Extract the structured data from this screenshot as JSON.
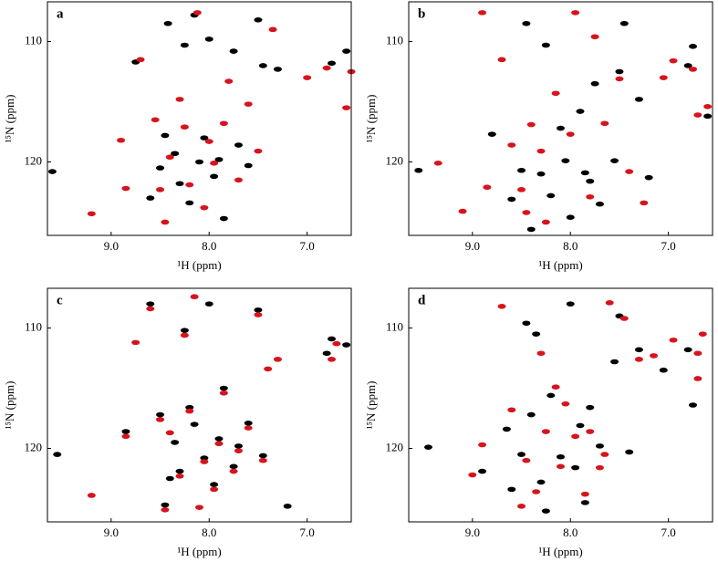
{
  "chart_data": [
    {
      "type": "scatter",
      "label": "a",
      "xlabel": "¹H (ppm)",
      "ylabel": "¹⁵N (ppm)",
      "xlim": [
        9.65,
        6.55
      ],
      "ylim": [
        126.1,
        106.7
      ],
      "xticks": [
        {
          "value": 9,
          "label": "9.0"
        },
        {
          "value": 8,
          "label": "8.0"
        },
        {
          "value": 7,
          "label": "7.0"
        }
      ],
      "yticks": [
        110,
        120
      ],
      "series": [
        {
          "color": "#000000",
          "x": [
            9.6,
            8.75,
            8.6,
            8.5,
            8.45,
            8.42,
            8.35,
            8.3,
            8.25,
            8.2,
            8.15,
            8.1,
            8.05,
            8.0,
            7.95,
            7.9,
            7.85,
            7.75,
            7.7,
            7.6,
            7.5,
            7.45,
            7.3,
            6.75,
            6.6
          ],
          "y": [
            120.8,
            111.7,
            123.0,
            120.5,
            117.8,
            108.5,
            119.3,
            121.8,
            110.3,
            123.4,
            107.8,
            120.0,
            118.0,
            109.8,
            121.2,
            119.8,
            124.7,
            110.8,
            118.6,
            120.3,
            108.2,
            112.0,
            112.3,
            111.8,
            110.8
          ]
        },
        {
          "color": "#d7141d",
          "x": [
            9.2,
            8.9,
            8.85,
            8.7,
            8.55,
            8.5,
            8.45,
            8.4,
            8.3,
            8.25,
            8.2,
            8.12,
            8.05,
            8.0,
            7.95,
            7.85,
            7.8,
            7.7,
            7.6,
            7.5,
            7.35,
            7.0,
            6.8,
            6.6,
            6.55
          ],
          "y": [
            124.3,
            118.2,
            122.2,
            111.5,
            116.5,
            122.3,
            125.0,
            119.6,
            114.8,
            117.1,
            121.9,
            107.6,
            123.8,
            118.3,
            120.1,
            116.8,
            113.3,
            121.5,
            115.2,
            119.1,
            109.0,
            113.0,
            112.2,
            115.5,
            112.5
          ]
        }
      ]
    },
    {
      "type": "scatter",
      "label": "b",
      "xlabel": "¹H (ppm)",
      "ylabel": "¹⁵N (ppm)",
      "xlim": [
        9.65,
        6.55
      ],
      "ylim": [
        126.1,
        106.7
      ],
      "xticks": [
        {
          "value": 9,
          "label": "9.0"
        },
        {
          "value": 8,
          "label": "8.0"
        },
        {
          "value": 7,
          "label": "7.0"
        }
      ],
      "yticks": [
        110,
        120
      ],
      "series": [
        {
          "color": "#000000",
          "x": [
            9.55,
            8.8,
            8.6,
            8.5,
            8.45,
            8.4,
            8.3,
            8.25,
            8.2,
            8.1,
            8.05,
            8.0,
            7.9,
            7.85,
            7.8,
            7.75,
            7.7,
            7.55,
            7.5,
            7.45,
            7.3,
            6.8,
            6.75,
            6.6,
            7.2
          ],
          "y": [
            120.7,
            117.7,
            123.1,
            120.7,
            108.5,
            125.6,
            121.0,
            110.3,
            122.8,
            117.2,
            119.9,
            124.6,
            115.8,
            120.9,
            121.6,
            113.5,
            123.5,
            119.9,
            112.5,
            108.5,
            114.8,
            112.0,
            110.4,
            116.2,
            121.3
          ]
        },
        {
          "color": "#d7141d",
          "x": [
            9.35,
            9.1,
            8.85,
            8.7,
            8.6,
            8.5,
            8.4,
            8.3,
            8.25,
            8.15,
            8.0,
            7.95,
            7.8,
            7.75,
            7.65,
            7.5,
            7.4,
            7.25,
            7.05,
            6.95,
            6.75,
            6.7,
            6.6,
            8.9,
            8.45
          ],
          "y": [
            120.1,
            124.1,
            122.1,
            111.5,
            118.6,
            122.3,
            116.9,
            119.1,
            125.0,
            114.3,
            117.7,
            107.6,
            122.9,
            109.6,
            116.8,
            113.1,
            120.8,
            123.4,
            113.0,
            111.6,
            112.3,
            116.1,
            115.4,
            107.6,
            124.2
          ]
        }
      ]
    },
    {
      "type": "scatter",
      "label": "c",
      "xlabel": "¹H (ppm)",
      "ylabel": "¹⁵N (ppm)",
      "xlim": [
        9.65,
        6.55
      ],
      "ylim": [
        126.1,
        106.7
      ],
      "xticks": [
        {
          "value": 9,
          "label": "9.0"
        },
        {
          "value": 8,
          "label": "8.0"
        },
        {
          "value": 7,
          "label": "7.0"
        }
      ],
      "yticks": [
        110,
        120
      ],
      "series": [
        {
          "color": "#000000",
          "x": [
            9.55,
            8.85,
            8.6,
            8.5,
            8.45,
            8.35,
            8.3,
            8.25,
            8.2,
            8.15,
            8.05,
            8.0,
            7.95,
            7.9,
            7.85,
            7.75,
            7.7,
            7.6,
            7.5,
            7.45,
            7.2,
            6.8,
            6.75,
            6.6,
            8.4
          ],
          "y": [
            120.5,
            118.6,
            108.0,
            117.2,
            124.7,
            119.5,
            121.9,
            110.2,
            116.6,
            118.0,
            120.8,
            108.0,
            123.0,
            119.2,
            115.0,
            121.5,
            119.8,
            117.9,
            108.5,
            120.6,
            124.8,
            112.1,
            110.9,
            111.4,
            122.5
          ]
        },
        {
          "color": "#d7141d",
          "x": [
            9.2,
            8.85,
            8.6,
            8.5,
            8.45,
            8.3,
            8.25,
            8.2,
            8.15,
            8.05,
            7.95,
            7.9,
            7.85,
            7.75,
            7.7,
            7.6,
            7.5,
            7.45,
            7.4,
            6.75,
            6.7,
            8.75,
            8.4,
            8.1,
            7.3
          ],
          "y": [
            123.9,
            119.0,
            108.4,
            117.6,
            125.1,
            122.3,
            110.6,
            116.9,
            107.4,
            121.1,
            123.4,
            119.6,
            115.4,
            121.9,
            120.2,
            118.3,
            108.9,
            121.0,
            113.4,
            112.6,
            111.3,
            111.2,
            118.7,
            124.9,
            112.6
          ]
        }
      ]
    },
    {
      "type": "scatter",
      "label": "d",
      "xlabel": "¹H (ppm)",
      "ylabel": "¹⁵N (ppm)",
      "xlim": [
        9.65,
        6.55
      ],
      "ylim": [
        126.1,
        106.7
      ],
      "xticks": [
        {
          "value": 9,
          "label": "9.0"
        },
        {
          "value": 8,
          "label": "8.0"
        },
        {
          "value": 7,
          "label": "7.0"
        }
      ],
      "yticks": [
        110,
        120
      ],
      "series": [
        {
          "color": "#000000",
          "x": [
            9.45,
            8.9,
            8.6,
            8.5,
            8.45,
            8.4,
            8.3,
            8.2,
            8.1,
            8.0,
            7.9,
            7.85,
            7.8,
            7.7,
            7.55,
            7.5,
            7.4,
            7.3,
            6.8,
            6.75,
            7.05,
            8.65,
            8.25,
            7.95,
            8.35
          ],
          "y": [
            119.9,
            121.9,
            123.4,
            120.5,
            109.6,
            117.2,
            122.8,
            115.6,
            120.7,
            108.0,
            118.1,
            124.5,
            116.6,
            119.8,
            112.8,
            109.0,
            120.3,
            111.8,
            111.8,
            116.4,
            113.5,
            118.4,
            125.2,
            121.6,
            110.5
          ]
        },
        {
          "color": "#d7141d",
          "x": [
            9.0,
            8.9,
            8.7,
            8.5,
            8.45,
            8.35,
            8.25,
            8.15,
            8.05,
            7.95,
            7.85,
            7.8,
            7.7,
            7.6,
            7.45,
            7.3,
            7.15,
            6.95,
            6.7,
            6.7,
            8.6,
            8.1,
            7.65,
            8.3,
            6.65
          ],
          "y": [
            122.2,
            119.7,
            108.2,
            124.8,
            121.0,
            123.6,
            118.6,
            114.9,
            116.3,
            119.0,
            123.8,
            118.6,
            121.6,
            107.9,
            109.2,
            112.6,
            112.3,
            111.0,
            114.2,
            112.1,
            116.8,
            121.5,
            120.5,
            112.1,
            110.5
          ]
        }
      ]
    }
  ]
}
